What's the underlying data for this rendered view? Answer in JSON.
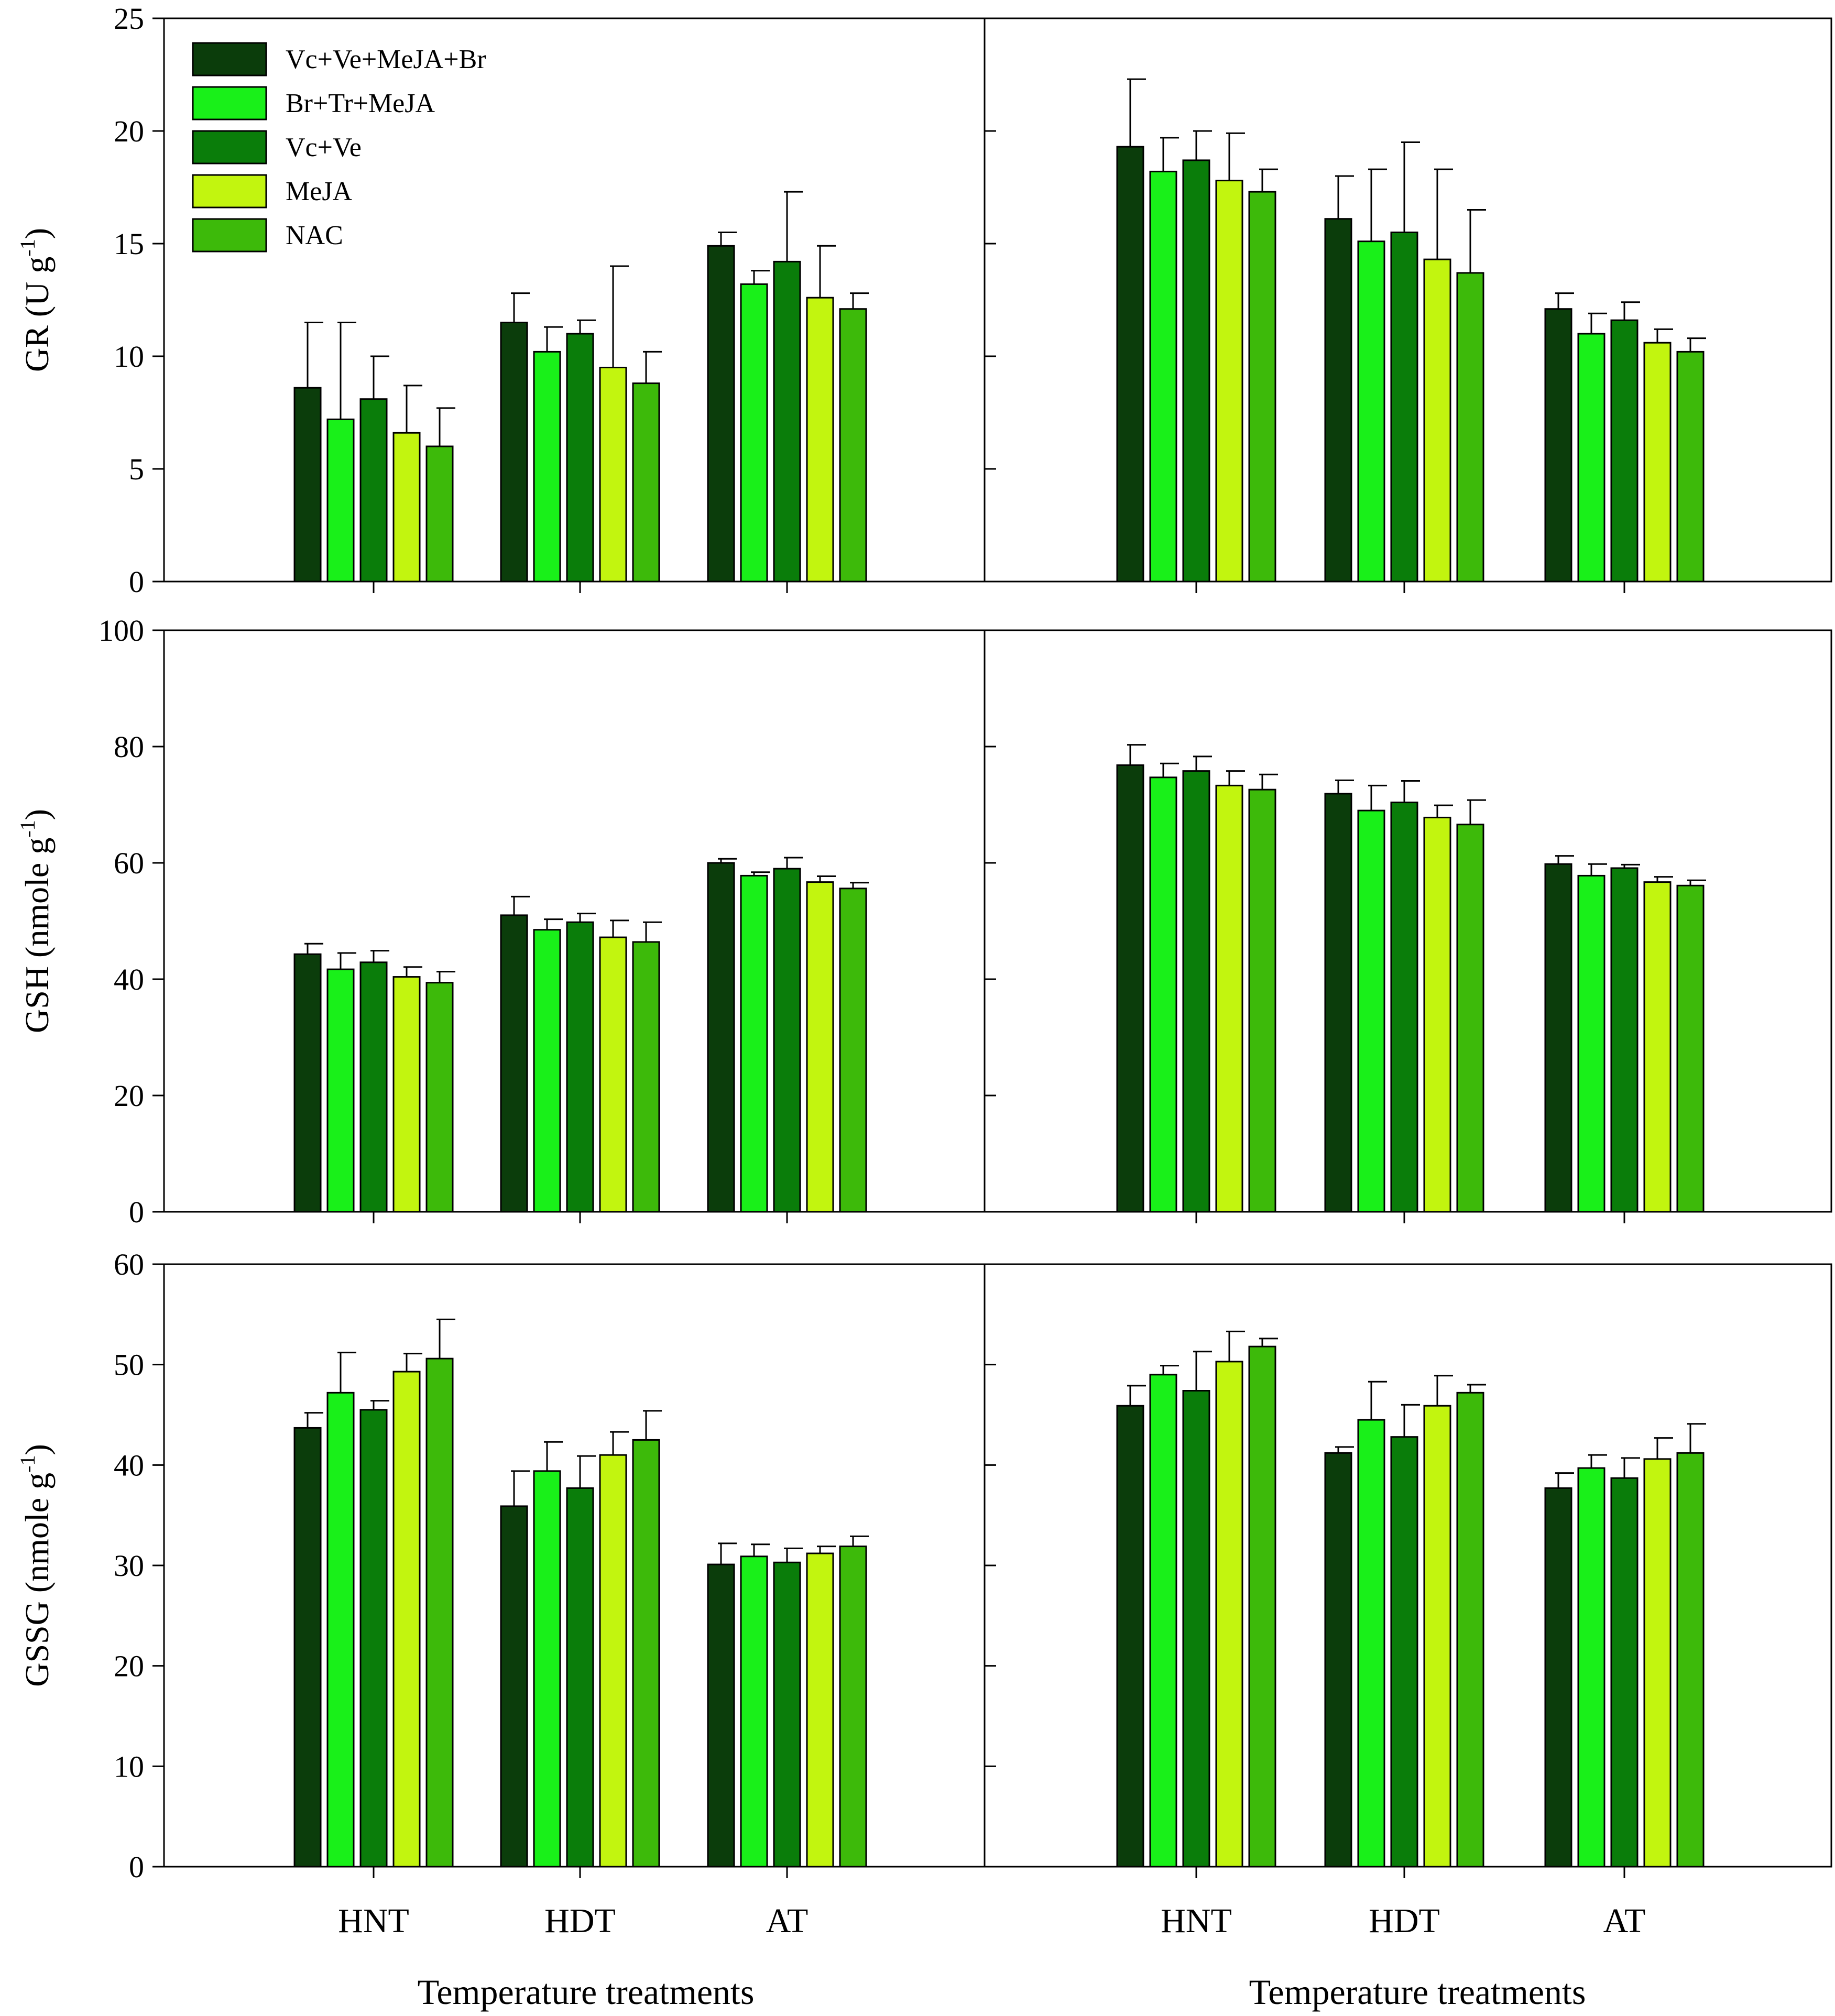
{
  "chart_data": {
    "type": "bar",
    "layout": "3 rows x 2 columns of grouped bar charts with error bars",
    "categories": [
      "HNT",
      "HDT",
      "AT"
    ],
    "series_names": [
      "Vc+Ve+MeJA+Br",
      "Br+Tr+MeJA",
      "Vc+Ve",
      "MeJA",
      "NAC"
    ],
    "colors": [
      "#0b3d0b",
      "#19f019",
      "#0a7d0a",
      "#c2f50f",
      "#3dba0a"
    ],
    "xlabel": "Temperature treatments",
    "panels": [
      {
        "row": 0,
        "col": 0,
        "ylabel": "GR (U g",
        "ylabel_sup": "-1",
        "ylabel_close": ")",
        "ylim": [
          0,
          25
        ],
        "yticks": [
          "0",
          "5",
          "10",
          "15",
          "20",
          "25"
        ],
        "show_legend": true,
        "series": [
          {
            "name": "Vc+Ve+MeJA+Br",
            "values": [
              8.6,
              11.5,
              14.9
            ],
            "errors": [
              2.9,
              1.3,
              0.6
            ]
          },
          {
            "name": "Br+Tr+MeJA",
            "values": [
              7.2,
              10.2,
              13.2
            ],
            "errors": [
              4.3,
              1.1,
              0.6
            ]
          },
          {
            "name": "Vc+Ve",
            "values": [
              8.1,
              11.0,
              14.2
            ],
            "errors": [
              1.9,
              0.6,
              3.1
            ]
          },
          {
            "name": "MeJA",
            "values": [
              6.6,
              9.5,
              12.6
            ],
            "errors": [
              2.1,
              4.5,
              2.3
            ]
          },
          {
            "name": "NAC",
            "values": [
              6.0,
              8.8,
              12.1
            ],
            "errors": [
              1.7,
              1.4,
              0.7
            ]
          }
        ]
      },
      {
        "row": 0,
        "col": 1,
        "ylim": [
          0,
          25
        ],
        "show_legend": false,
        "series": [
          {
            "name": "Vc+Ve+MeJA+Br",
            "values": [
              19.3,
              16.1,
              12.1
            ],
            "errors": [
              3.0,
              1.9,
              0.7
            ]
          },
          {
            "name": "Br+Tr+MeJA",
            "values": [
              18.2,
              15.1,
              11.0
            ],
            "errors": [
              1.5,
              3.2,
              0.9
            ]
          },
          {
            "name": "Vc+Ve",
            "values": [
              18.7,
              15.5,
              11.6
            ],
            "errors": [
              1.3,
              4.0,
              0.8
            ]
          },
          {
            "name": "MeJA",
            "values": [
              17.8,
              14.3,
              10.6
            ],
            "errors": [
              2.1,
              4.0,
              0.6
            ]
          },
          {
            "name": "NAC",
            "values": [
              17.3,
              13.7,
              10.2
            ],
            "errors": [
              1.0,
              2.8,
              0.6
            ]
          }
        ]
      },
      {
        "row": 1,
        "col": 0,
        "ylabel": "GSH (nmole g",
        "ylabel_sup": "-1",
        "ylabel_close": ")",
        "ylim": [
          0,
          100
        ],
        "yticks": [
          "0",
          "20",
          "40",
          "60",
          "80",
          "100"
        ],
        "show_legend": false,
        "series": [
          {
            "name": "Vc+Ve+MeJA+Br",
            "values": [
              44.3,
              51.0,
              60.0
            ],
            "errors": [
              1.8,
              3.2,
              0.7
            ]
          },
          {
            "name": "Br+Tr+MeJA",
            "values": [
              41.7,
              48.5,
              57.8
            ],
            "errors": [
              2.8,
              1.8,
              0.6
            ]
          },
          {
            "name": "Vc+Ve",
            "values": [
              42.9,
              49.8,
              59.0
            ],
            "errors": [
              2.0,
              1.5,
              1.9
            ]
          },
          {
            "name": "MeJA",
            "values": [
              40.4,
              47.2,
              56.7
            ],
            "errors": [
              1.7,
              2.9,
              1.0
            ]
          },
          {
            "name": "NAC",
            "values": [
              39.4,
              46.4,
              55.6
            ],
            "errors": [
              1.9,
              3.4,
              1.0
            ]
          }
        ]
      },
      {
        "row": 1,
        "col": 1,
        "ylim": [
          0,
          100
        ],
        "show_legend": false,
        "series": [
          {
            "name": "Vc+Ve+MeJA+Br",
            "values": [
              76.8,
              71.9,
              59.8
            ],
            "errors": [
              3.5,
              2.3,
              1.4
            ]
          },
          {
            "name": "Br+Tr+MeJA",
            "values": [
              74.7,
              69.0,
              57.8
            ],
            "errors": [
              2.4,
              4.3,
              2.0
            ]
          },
          {
            "name": "Vc+Ve",
            "values": [
              75.8,
              70.4,
              59.1
            ],
            "errors": [
              2.5,
              3.7,
              0.6
            ]
          },
          {
            "name": "MeJA",
            "values": [
              73.3,
              67.8,
              56.7
            ],
            "errors": [
              2.5,
              2.1,
              0.9
            ]
          },
          {
            "name": "NAC",
            "values": [
              72.6,
              66.6,
              56.1
            ],
            "errors": [
              2.6,
              4.2,
              0.9
            ]
          }
        ]
      },
      {
        "row": 2,
        "col": 0,
        "ylabel": "GSSG (nmole g",
        "ylabel_sup": "-1",
        "ylabel_close": ")",
        "ylim": [
          0,
          60
        ],
        "yticks": [
          "0",
          "10",
          "20",
          "30",
          "40",
          "50",
          "60"
        ],
        "show_legend": false,
        "series": [
          {
            "name": "Vc+Ve+MeJA+Br",
            "values": [
              43.7,
              35.9,
              30.1
            ],
            "errors": [
              1.5,
              3.5,
              2.1
            ]
          },
          {
            "name": "Br+Tr+MeJA",
            "values": [
              47.2,
              39.4,
              30.9
            ],
            "errors": [
              4.0,
              2.9,
              1.2
            ]
          },
          {
            "name": "Vc+Ve",
            "values": [
              45.5,
              37.7,
              30.3
            ],
            "errors": [
              0.9,
              3.2,
              1.4
            ]
          },
          {
            "name": "MeJA",
            "values": [
              49.3,
              41.0,
              31.2
            ],
            "errors": [
              1.8,
              2.3,
              0.7
            ]
          },
          {
            "name": "NAC",
            "values": [
              50.6,
              42.5,
              31.9
            ],
            "errors": [
              3.9,
              2.9,
              1.0
            ]
          }
        ]
      },
      {
        "row": 2,
        "col": 1,
        "ylim": [
          0,
          60
        ],
        "show_legend": false,
        "series": [
          {
            "name": "Vc+Ve+MeJA+Br",
            "values": [
              45.9,
              41.2,
              37.7
            ],
            "errors": [
              2.0,
              0.6,
              1.5
            ]
          },
          {
            "name": "Br+Tr+MeJA",
            "values": [
              49.0,
              44.5,
              39.7
            ],
            "errors": [
              0.9,
              3.8,
              1.3
            ]
          },
          {
            "name": "Vc+Ve",
            "values": [
              47.4,
              42.8,
              38.7
            ],
            "errors": [
              3.9,
              3.2,
              2.0
            ]
          },
          {
            "name": "MeJA",
            "values": [
              50.3,
              45.9,
              40.6
            ],
            "errors": [
              3.0,
              3.0,
              2.1
            ]
          },
          {
            "name": "NAC",
            "values": [
              51.8,
              47.2,
              41.2
            ],
            "errors": [
              0.8,
              0.8,
              2.9
            ]
          }
        ]
      }
    ]
  }
}
